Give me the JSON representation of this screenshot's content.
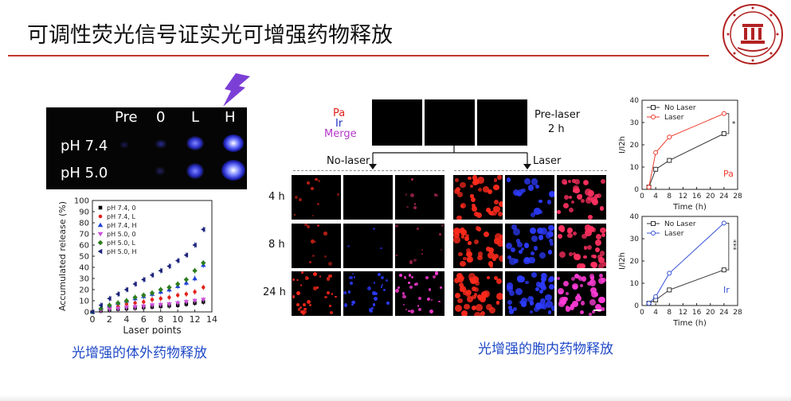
{
  "slide": {
    "title": "可调性荧光信号证实光可增强药物释放",
    "caption_left": "光增强的体外药物释放",
    "caption_right": "光增强的胞内药物释放"
  },
  "photo": {
    "col_headers": [
      "Pre",
      "0",
      "L",
      "H"
    ],
    "row_labels": [
      "pH 7.4",
      "pH 5.0"
    ]
  },
  "microscopy": {
    "legend": [
      "Pa",
      "Ir",
      "Merge"
    ],
    "legend_colors": [
      "#e0221b",
      "#2436c6",
      "#b436c9"
    ],
    "pre_label": [
      "Pre-laser",
      "2 h"
    ],
    "group_no_laser": "No-laser",
    "group_laser": "Laser",
    "time_rows": [
      "4 h",
      "8 h",
      "24 h"
    ]
  },
  "chart_data": [
    {
      "type": "scatter",
      "title": "",
      "xlabel": "Laser points",
      "ylabel": "Accumulated release (%)",
      "xlim": [
        0,
        14
      ],
      "ylim": [
        0,
        100
      ],
      "x_ticks": [
        0,
        2,
        4,
        6,
        8,
        10,
        12,
        14
      ],
      "y_ticks": [
        0,
        10,
        20,
        30,
        40,
        50,
        60,
        70,
        80,
        90,
        100
      ],
      "legend_position": "top-left",
      "grid": false,
      "x": [
        0,
        1,
        2,
        3,
        4,
        5,
        6,
        7,
        8,
        9,
        10,
        11,
        12,
        13
      ],
      "series": [
        {
          "name": "pH 7.4, 0",
          "color": "#000000",
          "marker": "square",
          "values": [
            0,
            1,
            2,
            2.5,
            3,
            3.5,
            4,
            4.5,
            5,
            5.5,
            6,
            7,
            8,
            9
          ]
        },
        {
          "name": "pH 7.4, L",
          "color": "#e0221b",
          "marker": "circle",
          "values": [
            0,
            2,
            4,
            5,
            7,
            8,
            9,
            11,
            12,
            13,
            15,
            16,
            18,
            22
          ]
        },
        {
          "name": "pH 7.4, H",
          "color": "#2141d8",
          "marker": "triangle-up",
          "values": [
            0,
            3,
            6,
            8,
            10,
            12,
            14,
            16,
            18,
            20,
            23,
            26,
            30,
            42
          ]
        },
        {
          "name": "pH 5.0, 0",
          "color": "#c94fd8",
          "marker": "triangle-down",
          "values": [
            0,
            1.5,
            2.5,
            3,
            4,
            4.5,
            5,
            6,
            6.5,
            7,
            8,
            9,
            10,
            11
          ]
        },
        {
          "name": "pH 5.0, L",
          "color": "#2e7d1e",
          "marker": "diamond",
          "values": [
            0,
            3,
            6,
            8,
            10,
            13,
            15,
            17,
            20,
            22,
            25,
            29,
            37,
            44
          ]
        },
        {
          "name": "pH 5.0, H",
          "color": "#1b237a",
          "marker": "triangle-left",
          "values": [
            0,
            6,
            12,
            16,
            20,
            25,
            29,
            33,
            37,
            41,
            46,
            51,
            60,
            74
          ]
        }
      ]
    },
    {
      "type": "line",
      "title": "",
      "xlabel": "Time (h)",
      "ylabel": "I/I2h",
      "xlim": [
        0,
        28
      ],
      "ylim": [
        0,
        40
      ],
      "x_ticks": [
        0,
        4,
        8,
        12,
        16,
        20,
        24,
        28
      ],
      "y_ticks": [
        0,
        10,
        20,
        30,
        40
      ],
      "legend_position": "top-left",
      "annotation": "Pa",
      "significance": "*",
      "x": [
        2,
        4,
        8,
        24
      ],
      "series": [
        {
          "name": "No Laser",
          "color": "#333333",
          "marker": "open-square",
          "values": [
            1,
            9,
            13,
            25
          ]
        },
        {
          "name": "Laser",
          "color": "#ef3b2c",
          "marker": "open-circle",
          "values": [
            1,
            16.5,
            23.5,
            34
          ]
        }
      ]
    },
    {
      "type": "line",
      "title": "",
      "xlabel": "Time (h)",
      "ylabel": "I/I2h",
      "xlim": [
        0,
        28
      ],
      "ylim": [
        0,
        40
      ],
      "x_ticks": [
        0,
        4,
        8,
        12,
        16,
        20,
        24,
        28
      ],
      "y_ticks": [
        0,
        10,
        20,
        30,
        40
      ],
      "legend_position": "top-left",
      "annotation": "Ir",
      "significance": "***",
      "x": [
        2,
        4,
        8,
        24
      ],
      "series": [
        {
          "name": "No Laser",
          "color": "#333333",
          "marker": "open-square",
          "values": [
            1,
            2.5,
            7,
            16
          ]
        },
        {
          "name": "Laser",
          "color": "#3550d8",
          "marker": "open-circle",
          "values": [
            1,
            4,
            14.5,
            37
          ]
        }
      ]
    }
  ]
}
